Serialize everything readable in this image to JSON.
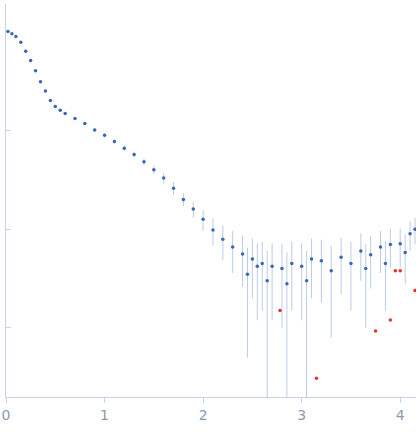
{
  "chart_data": {
    "type": "scatter",
    "log": "y",
    "grid": false,
    "tick_labels": "x",
    "xlim": [
      0,
      4.16
    ],
    "xticks": [
      0,
      1,
      2,
      3,
      4
    ],
    "ylim": [
      1.9,
      0.0002
    ],
    "yticks": [
      0.001,
      0.01,
      0.1
    ],
    "series": [
      {
        "color": "#3a66b5",
        "marker": "circle",
        "x": [
          0.02,
          0.06,
          0.1,
          0.15,
          0.2,
          0.25,
          0.3,
          0.35,
          0.4,
          0.45,
          0.5,
          0.55,
          0.6,
          0.7,
          0.8,
          0.9,
          1.0,
          1.1,
          1.2,
          1.3,
          1.4,
          1.5,
          1.6,
          1.7,
          1.8,
          1.9,
          2.0,
          2.1,
          2.2,
          2.3,
          2.4,
          2.45,
          2.5,
          2.55,
          2.6,
          2.65,
          2.7,
          2.8,
          2.85,
          2.9,
          3.0,
          3.05,
          3.1,
          3.2,
          3.3,
          3.4,
          3.5,
          3.6,
          3.65,
          3.7,
          3.8,
          3.85,
          3.9,
          4.0,
          4.05,
          4.1,
          4.15
        ],
        "values": [
          1.0,
          0.95,
          0.89,
          0.78,
          0.63,
          0.51,
          0.4,
          0.31,
          0.25,
          0.2,
          0.174,
          0.16,
          0.148,
          0.132,
          0.117,
          0.101,
          0.089,
          0.077,
          0.066,
          0.057,
          0.048,
          0.04,
          0.033,
          0.026,
          0.02,
          0.016,
          0.0126,
          0.0098,
          0.0079,
          0.0066,
          0.0056,
          0.0035,
          0.005,
          0.0042,
          0.0045,
          0.003,
          0.0042,
          0.004,
          0.0028,
          0.0045,
          0.0042,
          0.003,
          0.005,
          0.0048,
          0.0038,
          0.0052,
          0.0045,
          0.006,
          0.004,
          0.0055,
          0.0066,
          0.0045,
          0.007,
          0.0071,
          0.0058,
          0.009,
          0.01
        ],
        "errors": [
          0.02,
          0.02,
          0.02,
          0.02,
          0.015,
          0.01,
          0.01,
          0.008,
          0.006,
          0.005,
          0.004,
          0.004,
          0.004,
          0.004,
          0.004,
          0.004,
          0.004,
          0.004,
          0.004,
          0.004,
          0.004,
          0.004,
          0.004,
          0.004,
          0.003,
          0.003,
          0.003,
          0.003,
          0.003,
          0.003,
          0.003,
          0.003,
          0.003,
          0.003,
          0.003,
          0.003,
          0.003,
          0.003,
          0.003,
          0.003,
          0.003,
          0.003,
          0.003,
          0.003,
          0.003,
          0.003,
          0.003,
          0.003,
          0.003,
          0.003,
          0.003,
          0.003,
          0.003,
          0.003,
          0.003,
          0.003,
          0.003
        ]
      },
      {
        "color": "#e8302a",
        "marker": "circle",
        "x": [
          2.78,
          3.15,
          3.75,
          3.9,
          3.95,
          4.0,
          4.15
        ],
        "values": [
          0.0015,
          0.00031,
          0.00093,
          0.0012,
          0.0038,
          0.0038,
          0.0024
        ]
      }
    ]
  }
}
